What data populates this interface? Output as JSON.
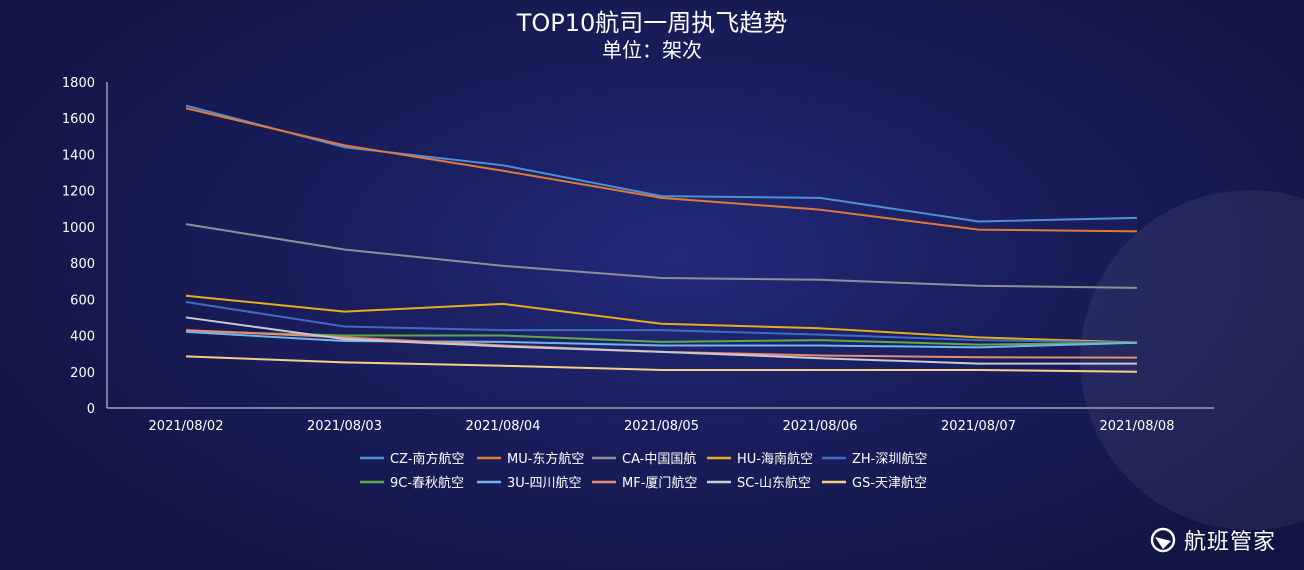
{
  "chart_data": {
    "type": "line",
    "title": "TOP10航司一周执飞趋势",
    "subtitle": "单位：架次",
    "xlabel": "",
    "ylabel": "",
    "categories": [
      "2021/08/02",
      "2021/08/03",
      "2021/08/04",
      "2021/08/05",
      "2021/08/06",
      "2021/08/07",
      "2021/08/08"
    ],
    "ylim": [
      0,
      1800
    ],
    "yticks": [
      0,
      200,
      400,
      600,
      800,
      1000,
      1200,
      1400,
      1600,
      1800
    ],
    "grid": false,
    "legend_position": "bottom-center",
    "series": [
      {
        "name": "CZ-南方航空",
        "color": "#4f8fd6",
        "values": [
          1670,
          1440,
          1340,
          1170,
          1160,
          1030,
          1050
        ]
      },
      {
        "name": "MU-东方航空",
        "color": "#e07a3b",
        "values": [
          1655,
          1450,
          1310,
          1160,
          1095,
          985,
          975
        ]
      },
      {
        "name": "CA-中国国航",
        "color": "#8d8f97",
        "values": [
          1015,
          875,
          785,
          718,
          708,
          675,
          663
        ]
      },
      {
        "name": "HU-海南航空",
        "color": "#e8ad1f",
        "values": [
          620,
          532,
          575,
          465,
          440,
          390,
          362
        ]
      },
      {
        "name": "ZH-深圳航空",
        "color": "#3f6cc2",
        "values": [
          585,
          450,
          430,
          430,
          405,
          375,
          360
        ]
      },
      {
        "name": "9C-春秋航空",
        "color": "#62a845",
        "values": [
          425,
          400,
          400,
          365,
          375,
          350,
          360
        ]
      },
      {
        "name": "3U-四川航空",
        "color": "#70b6e8",
        "values": [
          420,
          370,
          365,
          345,
          345,
          335,
          360
        ]
      },
      {
        "name": "MF-厦门航空",
        "color": "#e98c74",
        "values": [
          430,
          390,
          345,
          310,
          290,
          280,
          278
        ]
      },
      {
        "name": "SC-山东航空",
        "color": "#c9c9d2",
        "values": [
          500,
          380,
          340,
          310,
          275,
          245,
          245
        ]
      },
      {
        "name": "GS-天津航空",
        "color": "#f4d08a",
        "values": [
          285,
          252,
          233,
          210,
          210,
          210,
          200
        ]
      }
    ]
  },
  "brand": {
    "name": "航班管家",
    "icon": "shield-logo-icon"
  }
}
